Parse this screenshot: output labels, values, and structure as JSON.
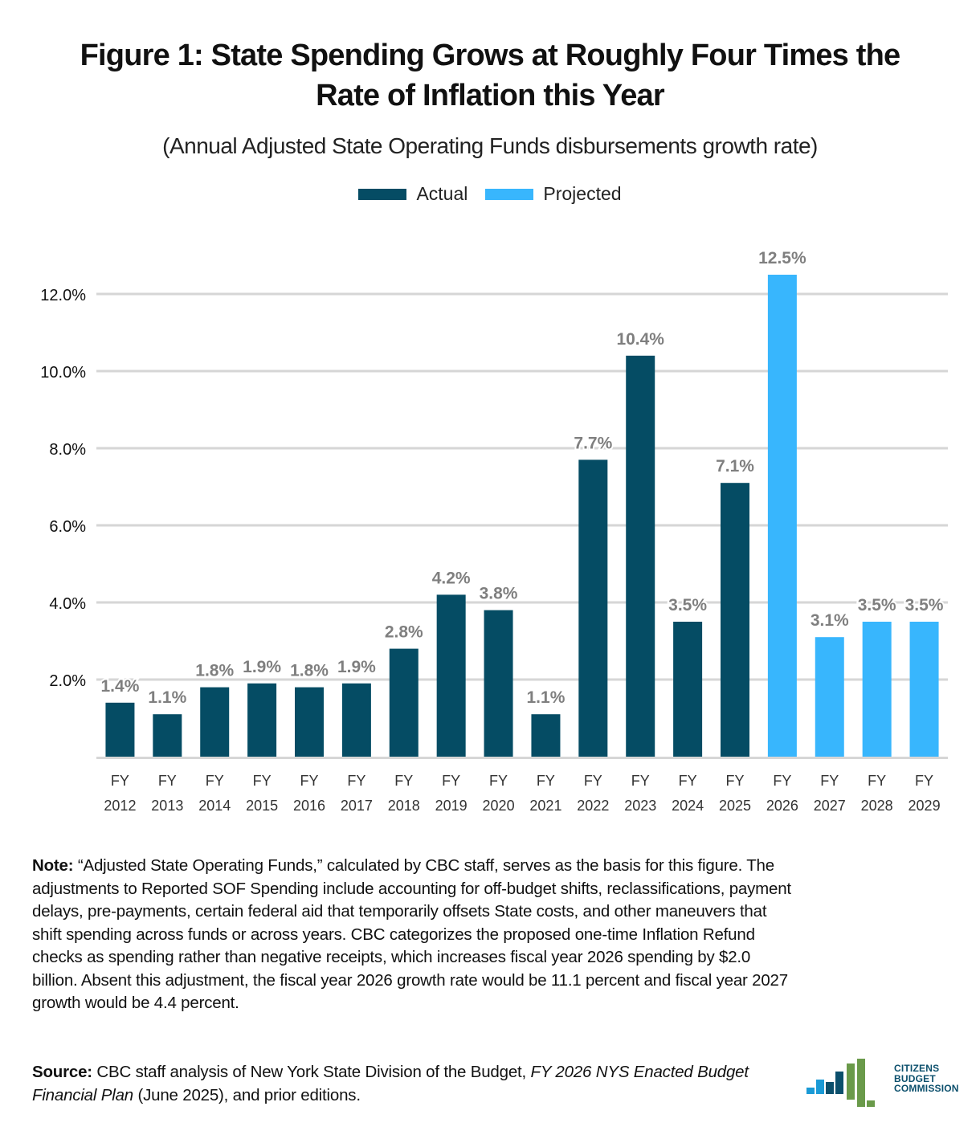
{
  "header": {
    "title_line1": "Figure 1: State Spending Grows at Roughly Four Times the",
    "title_line2": "Rate of Inflation this Year",
    "subtitle": "(Annual Adjusted State Operating Funds disbursements growth rate)"
  },
  "colors": {
    "actual": "#054c64",
    "projected": "#38b6fd",
    "gridline": "#d6d6d6",
    "data_label": "#7f7f7f"
  },
  "chart_data": {
    "type": "bar",
    "title": "Figure 1: State Spending Grows at Roughly Four Times the Rate of Inflation this Year",
    "subtitle": "(Annual Adjusted State Operating Funds disbursements growth rate)",
    "xlabel": "",
    "ylabel": "",
    "ylim": [
      0,
      12
    ],
    "yticks": [
      2,
      4,
      6,
      8,
      10,
      12
    ],
    "ytick_labels": [
      "2.0%",
      "4.0%",
      "6.0%",
      "8.0%",
      "10.0%",
      "12.0%"
    ],
    "grid": true,
    "legend_position": "top-center",
    "legend": [
      {
        "name": "Actual",
        "color": "#054c64"
      },
      {
        "name": "Projected",
        "color": "#38b6fd"
      }
    ],
    "categories": [
      [
        "FY",
        "2012"
      ],
      [
        "FY",
        "2013"
      ],
      [
        "FY",
        "2014"
      ],
      [
        "FY",
        "2015"
      ],
      [
        "FY",
        "2016"
      ],
      [
        "FY",
        "2017"
      ],
      [
        "FY",
        "2018"
      ],
      [
        "FY",
        "2019"
      ],
      [
        "FY",
        "2020"
      ],
      [
        "FY",
        "2021"
      ],
      [
        "FY",
        "2022"
      ],
      [
        "FY",
        "2023"
      ],
      [
        "FY",
        "2024"
      ],
      [
        "FY",
        "2025"
      ],
      [
        "FY",
        "2026"
      ],
      [
        "FY",
        "2027"
      ],
      [
        "FY",
        "2028"
      ],
      [
        "FY",
        "2029"
      ]
    ],
    "values": [
      1.4,
      1.1,
      1.8,
      1.9,
      1.8,
      1.9,
      2.8,
      4.2,
      3.8,
      1.1,
      7.7,
      10.4,
      3.5,
      7.1,
      12.5,
      3.1,
      3.5,
      3.5
    ],
    "data_labels": [
      "1.4%",
      "1.1%",
      "1.8%",
      "1.9%",
      "1.8%",
      "1.9%",
      "2.8%",
      "4.2%",
      "3.8%",
      "1.1%",
      "7.7%",
      "10.4%",
      "3.5%",
      "7.1%",
      "12.5%",
      "3.1%",
      "3.5%",
      "3.5%"
    ],
    "series_assignment": [
      "Actual",
      "Actual",
      "Actual",
      "Actual",
      "Actual",
      "Actual",
      "Actual",
      "Actual",
      "Actual",
      "Actual",
      "Actual",
      "Actual",
      "Actual",
      "Actual",
      "Projected",
      "Projected",
      "Projected",
      "Projected"
    ]
  },
  "note": {
    "label": "Note:",
    "text": " “Adjusted State Operating Funds,” calculated by CBC staff, serves as the basis for this figure. The adjustments to Reported SOF Spending include accounting for off-budget shifts, reclassifications, payment delays, pre-payments, certain federal aid that temporarily offsets State costs, and other maneuvers that shift spending across funds or across years. CBC categorizes the proposed one-time Inflation Refund checks as spending rather than negative receipts, which increases fiscal year 2026 spending by $2.0 billion. Absent this adjustment, the fiscal year 2026 growth rate would be 11.1 percent and fiscal year 2027 growth would be 4.4 percent."
  },
  "source": {
    "label": "Source:",
    "text_before": " CBC staff analysis of New York State Division of the Budget, ",
    "italic": "FY 2026 NYS Enacted Budget Financial Plan",
    "text_after": " (June 2025), and prior editions."
  },
  "logo": {
    "line1": "CITIZENS",
    "line2": "BUDGET",
    "line3": "COMMISSION"
  }
}
